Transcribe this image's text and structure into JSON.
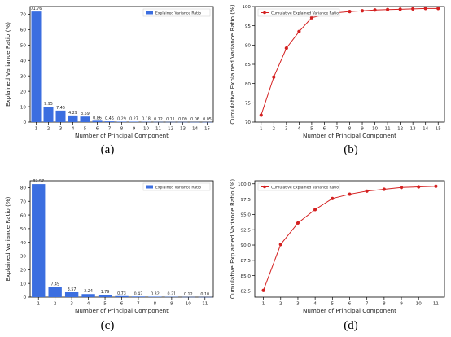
{
  "captions": {
    "a": "(a)",
    "b": "(b)",
    "c": "(c)",
    "d": "(d)"
  },
  "colors": {
    "bar": "#3b6ee0",
    "line": "#d42020",
    "axis": "#000000"
  },
  "chart_data": [
    {
      "id": "a",
      "type": "bar",
      "categories": [
        "1",
        "2",
        "3",
        "4",
        "5",
        "6",
        "7",
        "8",
        "9",
        "10",
        "11",
        "12",
        "13",
        "14",
        "15"
      ],
      "values": [
        71.76,
        9.95,
        7.46,
        4.29,
        3.59,
        0.86,
        0.46,
        0.29,
        0.27,
        0.18,
        0.12,
        0.11,
        0.09,
        0.06,
        0.05
      ],
      "value_labels": [
        "71.76",
        "9.95",
        "7.46",
        "4.29",
        "3.59",
        "0.86",
        "0.46",
        "0.29",
        "0.27",
        "0.18",
        "0.12",
        "0.11",
        "0.09",
        "0.06",
        "0.05"
      ],
      "xlabel": "Number of Principal Component",
      "ylabel": "Explained Variance Ratio (%)",
      "ylim": [
        0,
        75
      ],
      "yticks": [
        "0",
        "10",
        "20",
        "30",
        "40",
        "50",
        "60",
        "70"
      ],
      "legend": "Explained Variance Ratio",
      "legend_position": "top-right",
      "grid": false
    },
    {
      "id": "b",
      "type": "line",
      "x": [
        "1",
        "2",
        "3",
        "4",
        "5",
        "6",
        "7",
        "8",
        "9",
        "10",
        "11",
        "12",
        "13",
        "14",
        "15"
      ],
      "values": [
        71.8,
        81.7,
        89.2,
        93.5,
        97.1,
        97.9,
        98.4,
        98.7,
        98.9,
        99.1,
        99.2,
        99.3,
        99.4,
        99.5,
        99.5
      ],
      "xlabel": "Number of Principal Component",
      "ylabel": "Cumulative Explained Variance Ratio (%)",
      "ylim": [
        70,
        100
      ],
      "yticks": [
        "70",
        "75",
        "80",
        "85",
        "90",
        "95",
        "100"
      ],
      "legend": "Cumulative Explained Variance Ratio",
      "legend_position": "top-left",
      "grid": false
    },
    {
      "id": "c",
      "type": "bar",
      "categories": [
        "1",
        "2",
        "3",
        "4",
        "5",
        "6",
        "7",
        "8",
        "9",
        "10",
        "11"
      ],
      "values": [
        82.57,
        7.49,
        3.57,
        2.24,
        1.79,
        0.73,
        0.42,
        0.32,
        0.21,
        0.12,
        0.1
      ],
      "value_labels": [
        "82.57",
        "7.49",
        "3.57",
        "2.24",
        "1.79",
        "0.73",
        "0.42",
        "0.32",
        "0.21",
        "0.12",
        "0.10"
      ],
      "xlabel": "Number of Principal Component",
      "ylabel": "Explained Variance Ratio (%)",
      "ylim": [
        0,
        85
      ],
      "yticks": [
        "0",
        "10",
        "20",
        "30",
        "40",
        "50",
        "60",
        "70",
        "80"
      ],
      "legend": "Explained Variance Ratio",
      "legend_position": "top-right",
      "grid": false
    },
    {
      "id": "d",
      "type": "line",
      "x": [
        "1",
        "2",
        "3",
        "4",
        "5",
        "6",
        "7",
        "8",
        "9",
        "10",
        "11"
      ],
      "values": [
        82.6,
        90.1,
        93.6,
        95.8,
        97.6,
        98.3,
        98.8,
        99.1,
        99.4,
        99.5,
        99.6
      ],
      "xlabel": "Number of Principal Component",
      "ylabel": "Cumulative Explained Variance Ratio (%)",
      "ylim": [
        81.5,
        100.5
      ],
      "yticks": [
        "82.5",
        "85.0",
        "87.5",
        "90.0",
        "92.5",
        "95.0",
        "97.5",
        "100.0"
      ],
      "legend": "Cumulative Explained Variance Ratio",
      "legend_position": "top-left",
      "grid": false
    }
  ]
}
